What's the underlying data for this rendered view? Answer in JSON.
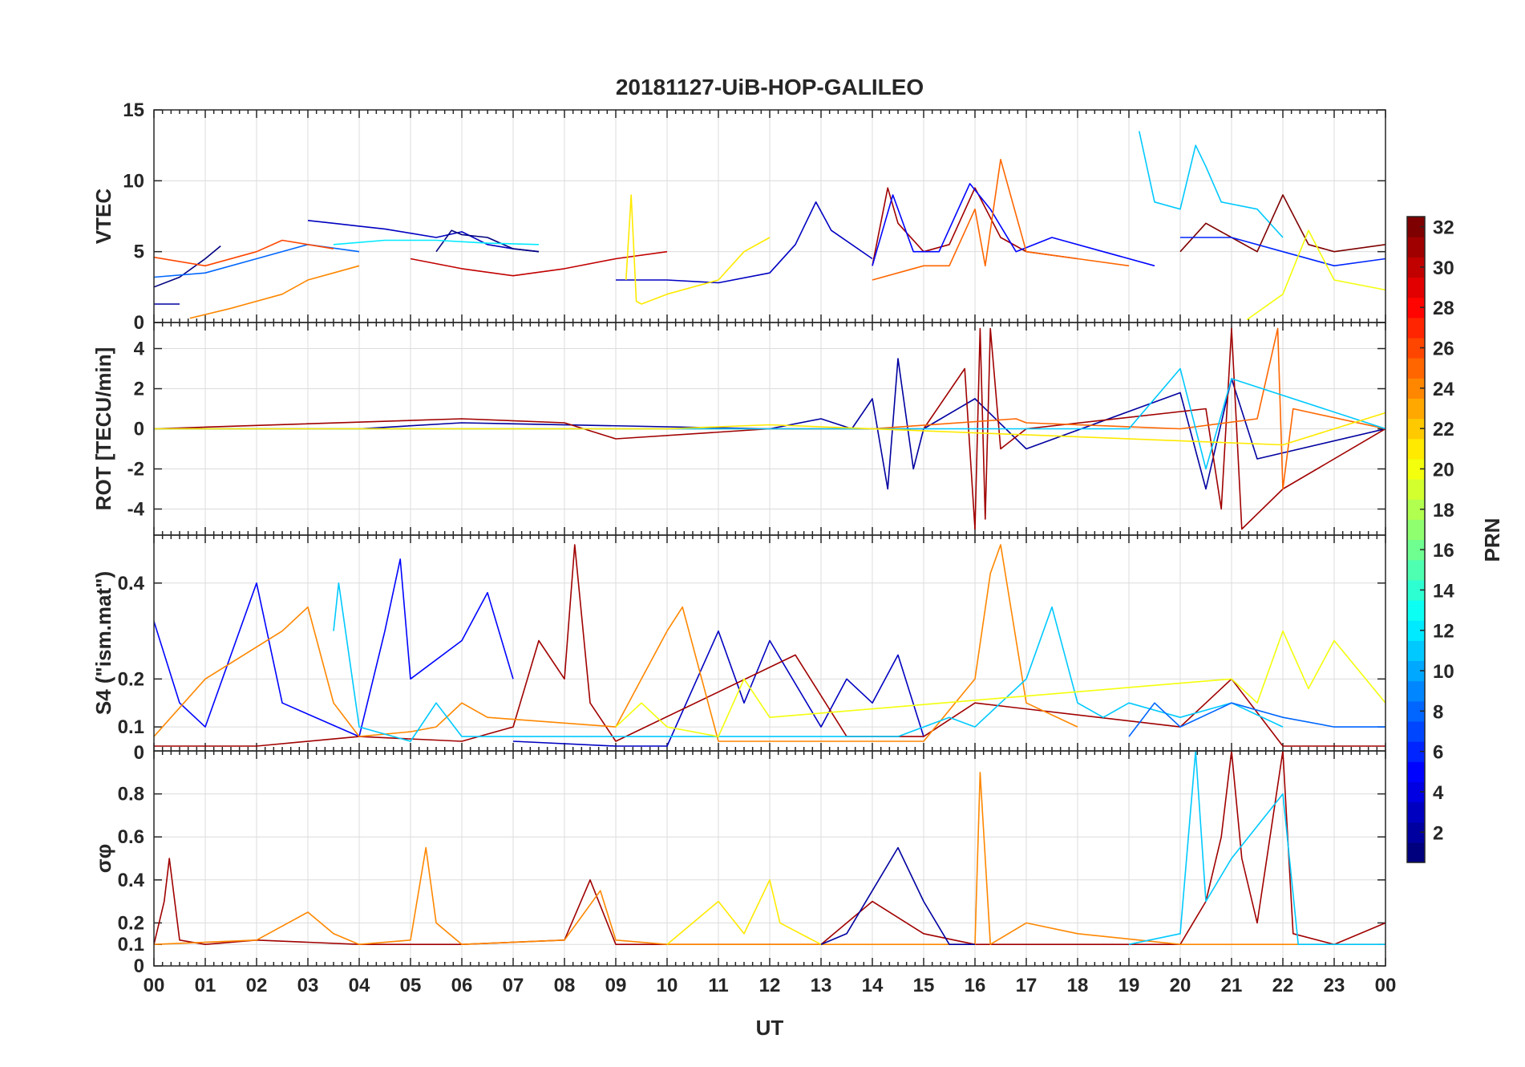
{
  "chart_data": {
    "type": "line",
    "title": "20181127-UiB-HOP-GALILEO",
    "xlabel": "UT",
    "x_ticks": [
      "00",
      "01",
      "02",
      "03",
      "04",
      "05",
      "06",
      "07",
      "08",
      "09",
      "10",
      "11",
      "12",
      "13",
      "14",
      "15",
      "16",
      "17",
      "18",
      "19",
      "20",
      "21",
      "22",
      "23",
      "00"
    ],
    "xlim": [
      0,
      24
    ],
    "grid": true,
    "panels": [
      {
        "id": "vtec",
        "ylabel": "VTEC",
        "ylim": [
          0,
          15
        ],
        "yticks": [
          "0",
          "5",
          "10",
          "15"
        ],
        "ytick_values": [
          0,
          5,
          10,
          15
        ],
        "series": [
          {
            "prn": 1,
            "x": [
              0,
              0.5,
              1,
              1.3
            ],
            "y": [
              2.5,
              3.2,
              4.5,
              5.4
            ]
          },
          {
            "prn": 2,
            "x": [
              0,
              0.5
            ],
            "y": [
              1.3,
              1.3
            ]
          },
          {
            "prn": 3,
            "x": [
              3,
              3.5,
              4,
              4.5,
              5,
              5.5,
              6,
              6.5,
              7,
              7.5
            ],
            "y": [
              7.2,
              7,
              6.8,
              6.6,
              6.3,
              6,
              6.4,
              5.5,
              5.2,
              5
            ]
          },
          {
            "prn": 1,
            "x": [
              5.5,
              5.8,
              6,
              6.5,
              7,
              7.5
            ],
            "y": [
              5,
              6.5,
              6.2,
              6,
              5.2,
              5
            ]
          },
          {
            "prn": 3,
            "x": [
              9,
              10,
              11,
              12,
              12.5,
              12.9,
              13.2,
              14
            ],
            "y": [
              3,
              3,
              2.8,
              3.5,
              5.5,
              8.5,
              6.5,
              4.5
            ]
          },
          {
            "prn": 8,
            "x": [
              0,
              1,
              2,
              3,
              4
            ],
            "y": [
              3.2,
              3.5,
              4.5,
              5.5,
              5
            ]
          },
          {
            "prn": 12,
            "x": [
              3.5,
              4.5,
              5.5,
              6.5,
              7.5
            ],
            "y": [
              5.5,
              5.8,
              5.8,
              5.6,
              5.5
            ]
          },
          {
            "prn": 24,
            "x": [
              0.7,
              1.5,
              2.5,
              3,
              3.5,
              4
            ],
            "y": [
              0.3,
              1,
              2,
              3,
              3.5,
              4
            ]
          },
          {
            "prn": 26,
            "x": [
              0,
              1,
              2,
              2.5,
              3.5
            ],
            "y": [
              4.6,
              4,
              5,
              5.8,
              5.2
            ]
          },
          {
            "prn": 30,
            "x": [
              5,
              6,
              7,
              8,
              9,
              10
            ],
            "y": [
              4.5,
              3.8,
              3.3,
              3.8,
              4.5,
              5
            ]
          },
          {
            "prn": 21,
            "x": [
              9.2,
              9.3,
              9.4,
              9.5,
              10,
              11,
              11.5,
              12
            ],
            "y": [
              3,
              9,
              1.5,
              1.3,
              2,
              3,
              5,
              6
            ]
          },
          {
            "prn": 31,
            "x": [
              14,
              14.3,
              14.5,
              15,
              15.5,
              16,
              16.5,
              17,
              18
            ],
            "y": [
              4,
              9.5,
              7,
              5,
              5.5,
              9.5,
              6,
              5,
              4.5
            ]
          },
          {
            "prn": 5,
            "x": [
              14,
              14.4,
              14.8,
              15.3,
              15.9,
              16.3,
              16.8,
              17.5,
              18.5,
              19.5
            ],
            "y": [
              4,
              9,
              5,
              5,
              9.8,
              8,
              5,
              6,
              5,
              4
            ]
          },
          {
            "prn": 25,
            "x": [
              14,
              15,
              15.5,
              16,
              16.2,
              16.5,
              17,
              18,
              19
            ],
            "y": [
              3,
              4,
              4,
              8,
              4,
              11.5,
              5,
              4.5,
              4
            ]
          },
          {
            "prn": 11,
            "x": [
              19.2,
              19.5,
              20,
              20.3,
              20.5,
              20.8,
              21.5,
              22
            ],
            "y": [
              13.5,
              8.5,
              8,
              12.5,
              11,
              8.5,
              8,
              6
            ]
          },
          {
            "prn": 32,
            "x": [
              20,
              20.5,
              21,
              21.5,
              22,
              22.5,
              23,
              24
            ],
            "y": [
              5,
              7,
              6,
              5,
              9,
              5.5,
              5,
              5.5
            ]
          },
          {
            "prn": 6,
            "x": [
              20,
              21,
              22,
              23,
              24
            ],
            "y": [
              6,
              6,
              5,
              4,
              4.5
            ]
          },
          {
            "prn": 20,
            "x": [
              21.3,
              22,
              22.5,
              23,
              24
            ],
            "y": [
              0.2,
              2,
              6.5,
              3,
              2.3
            ]
          }
        ]
      },
      {
        "id": "rot",
        "ylabel": "ROT [TECU/min]",
        "ylim": [
          -5.3,
          5.3
        ],
        "yticks": [
          "-4",
          "-2",
          "0",
          "2",
          "4"
        ],
        "ytick_values": [
          -4,
          -2,
          0,
          2,
          4
        ],
        "series": [
          {
            "prn": 2,
            "x": [
              0,
              4,
              6,
              12,
              13,
              13.6,
              14,
              14.3,
              14.5,
              14.8,
              15,
              16,
              17,
              20,
              20.5,
              21,
              21.5,
              24
            ],
            "y": [
              0,
              0,
              0.3,
              0,
              0.5,
              0,
              1.5,
              -3,
              3.5,
              -2,
              0,
              1.5,
              -1,
              1.8,
              -3,
              2.5,
              -1.5,
              0
            ]
          },
          {
            "prn": 31,
            "x": [
              0,
              6,
              8,
              9,
              12,
              14,
              15,
              15.8,
              16,
              16.1,
              16.2,
              16.3,
              16.5,
              17,
              20.5,
              20.8,
              21,
              21.2,
              22,
              24
            ],
            "y": [
              0,
              0.5,
              0.3,
              -0.5,
              0,
              0,
              0,
              3,
              -5,
              5,
              -4.5,
              5,
              -1,
              0,
              1,
              -4,
              5,
              -5,
              -3,
              0
            ]
          },
          {
            "prn": 25,
            "x": [
              0,
              8,
              11,
              14,
              16.8,
              17,
              20,
              21.5,
              21.9,
              22,
              22.2,
              24
            ],
            "y": [
              0,
              0,
              0,
              0,
              0.5,
              0.3,
              0,
              0.5,
              5,
              -3,
              1,
              0
            ]
          },
          {
            "prn": 11,
            "x": [
              0,
              10,
              19,
              20,
              20.5,
              21,
              24
            ],
            "y": [
              0,
              0,
              0,
              3,
              -2,
              2.5,
              0
            ]
          },
          {
            "prn": 21,
            "x": [
              0,
              10,
              12,
              22,
              24
            ],
            "y": [
              0,
              0,
              0.2,
              -0.8,
              0.8
            ]
          }
        ]
      },
      {
        "id": "s4",
        "ylabel": "S4 (\"ism.mat\")",
        "ylim": [
          0.05,
          0.5
        ],
        "yticks": [
          "0.1",
          "0.2",
          "0.4"
        ],
        "ytick_values": [
          0.1,
          0.2,
          0.4
        ],
        "series": [
          {
            "prn": 5,
            "x": [
              0,
              0.5,
              1,
              2,
              2.5,
              4,
              4.5,
              4.8,
              5,
              6,
              6.5,
              7
            ],
            "y": [
              0.32,
              0.15,
              0.1,
              0.4,
              0.15,
              0.08,
              0.3,
              0.45,
              0.2,
              0.28,
              0.38,
              0.2
            ]
          },
          {
            "prn": 3,
            "x": [
              7,
              9,
              10,
              11,
              11.5,
              12,
              13,
              13.5,
              14,
              14.5,
              15
            ],
            "y": [
              0.07,
              0.06,
              0.06,
              0.3,
              0.15,
              0.28,
              0.1,
              0.2,
              0.15,
              0.25,
              0.08
            ]
          },
          {
            "prn": 31,
            "x": [
              0,
              2,
              4,
              6,
              7,
              7.5,
              8,
              8.2,
              8.5,
              9,
              12.5,
              13.5,
              15,
              16,
              20,
              21,
              22,
              24
            ],
            "y": [
              0.06,
              0.06,
              0.08,
              0.07,
              0.1,
              0.28,
              0.2,
              0.48,
              0.15,
              0.07,
              0.25,
              0.08,
              0.08,
              0.15,
              0.1,
              0.2,
              0.06,
              0.06
            ]
          },
          {
            "prn": 24,
            "x": [
              0,
              1,
              2.5,
              3,
              3.5,
              4,
              5,
              5.5,
              6,
              6.5,
              9,
              9.5,
              10,
              10.3,
              11,
              15,
              16,
              16.3,
              16.5,
              17,
              18
            ],
            "y": [
              0.08,
              0.2,
              0.3,
              0.35,
              0.15,
              0.08,
              0.09,
              0.1,
              0.15,
              0.12,
              0.1,
              0.2,
              0.3,
              0.35,
              0.07,
              0.07,
              0.2,
              0.42,
              0.48,
              0.15,
              0.1
            ]
          },
          {
            "prn": 11,
            "x": [
              3.5,
              3.6,
              4,
              5,
              5.5,
              6,
              14.5,
              15.5,
              16,
              17,
              17.5,
              18,
              18.5,
              19,
              20,
              21,
              22
            ],
            "y": [
              0.3,
              0.4,
              0.1,
              0.07,
              0.15,
              0.08,
              0.08,
              0.12,
              0.1,
              0.2,
              0.35,
              0.15,
              0.12,
              0.15,
              0.12,
              0.15,
              0.1
            ]
          },
          {
            "prn": 20,
            "x": [
              9,
              9.5,
              10,
              11,
              11.5,
              12,
              21,
              21.5,
              22,
              22.5,
              23,
              24
            ],
            "y": [
              0.1,
              0.15,
              0.1,
              0.08,
              0.2,
              0.12,
              0.2,
              0.15,
              0.3,
              0.18,
              0.28,
              0.15
            ]
          },
          {
            "prn": 8,
            "x": [
              19,
              19.5,
              20,
              21,
              22,
              23,
              24
            ],
            "y": [
              0.08,
              0.15,
              0.1,
              0.15,
              0.12,
              0.1,
              0.1
            ]
          }
        ]
      },
      {
        "id": "sigma",
        "ylabel": "σφ",
        "ylim": [
          0,
          1
        ],
        "yticks": [
          "0",
          "0.1",
          "0.2",
          "0.4",
          "0.6",
          "0.8"
        ],
        "ytick_values": [
          0,
          0.1,
          0.2,
          0.4,
          0.6,
          0.8
        ],
        "top_tick": "0",
        "series": [
          {
            "prn": 31,
            "x": [
              0,
              0.2,
              0.3,
              0.5,
              1,
              2,
              4,
              6,
              8,
              8.5,
              9,
              12,
              13,
              14,
              15,
              16,
              17,
              20,
              20.5,
              20.8,
              21,
              21.2,
              21.5,
              22,
              22.2,
              23,
              24
            ],
            "y": [
              0.1,
              0.3,
              0.5,
              0.12,
              0.1,
              0.12,
              0.1,
              0.1,
              0.12,
              0.4,
              0.1,
              0.1,
              0.1,
              0.3,
              0.15,
              0.1,
              0.1,
              0.1,
              0.3,
              0.6,
              1,
              0.5,
              0.2,
              1,
              0.15,
              0.1,
              0.2
            ]
          },
          {
            "prn": 24,
            "x": [
              0,
              2,
              3,
              3.5,
              4,
              5,
              5.3,
              5.5,
              6,
              8,
              8.7,
              9,
              10,
              15,
              16,
              16.1,
              16.3,
              17,
              18,
              20,
              24
            ],
            "y": [
              0.1,
              0.12,
              0.25,
              0.15,
              0.1,
              0.12,
              0.55,
              0.2,
              0.1,
              0.12,
              0.35,
              0.12,
              0.1,
              0.1,
              0.1,
              0.9,
              0.1,
              0.2,
              0.15,
              0.1,
              0.1
            ]
          },
          {
            "prn": 21,
            "x": [
              10,
              11,
              11.5,
              12,
              12.2,
              13
            ],
            "y": [
              0.1,
              0.3,
              0.15,
              0.4,
              0.2,
              0.1
            ]
          },
          {
            "prn": 11,
            "x": [
              19,
              20,
              20.3,
              20.5,
              21,
              22,
              22.3,
              24
            ],
            "y": [
              0.1,
              0.15,
              1,
              0.3,
              0.5,
              0.8,
              0.1,
              0.1
            ]
          },
          {
            "prn": 2,
            "x": [
              13,
              13.5,
              14,
              14.5,
              15,
              15.5,
              16
            ],
            "y": [
              0.1,
              0.15,
              0.35,
              0.55,
              0.3,
              0.1,
              0.1
            ]
          }
        ]
      }
    ],
    "colorbar": {
      "label": "PRN",
      "range": [
        1,
        32
      ],
      "ticks": [
        "2",
        "4",
        "6",
        "8",
        "10",
        "12",
        "14",
        "16",
        "18",
        "20",
        "22",
        "24",
        "26",
        "28",
        "30",
        "32"
      ],
      "tick_values": [
        2,
        4,
        6,
        8,
        10,
        12,
        14,
        16,
        18,
        20,
        22,
        24,
        26,
        28,
        30,
        32
      ],
      "colormap": "jet",
      "colors": [
        "#00007f",
        "#0000ff",
        "#007fff",
        "#00ffff",
        "#7fff7f",
        "#ffff00",
        "#ff7f00",
        "#ff0000",
        "#7f0000"
      ]
    }
  }
}
